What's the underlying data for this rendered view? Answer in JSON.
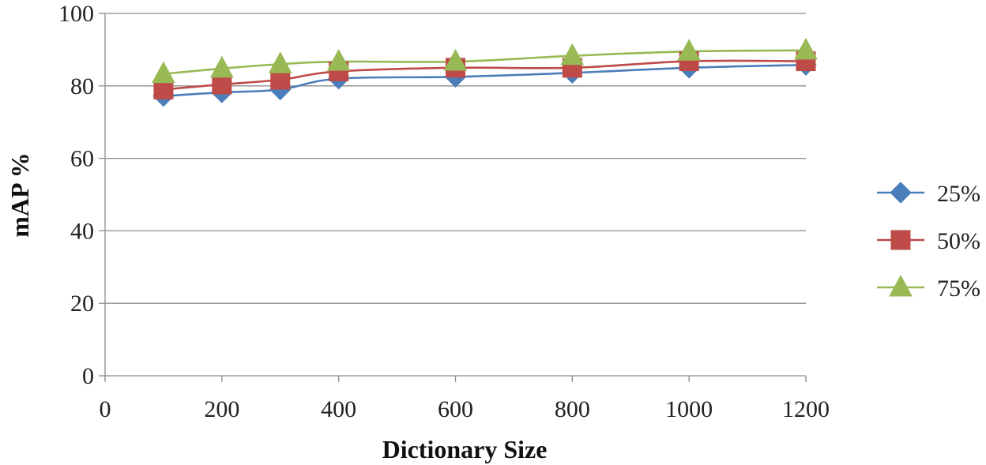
{
  "chart_data": {
    "type": "line",
    "title": "",
    "xlabel": "Dictionary Size",
    "ylabel": "mAP %",
    "xlim": [
      0,
      1200
    ],
    "ylim": [
      0,
      100
    ],
    "xticks": [
      0,
      200,
      400,
      600,
      800,
      1000,
      1200
    ],
    "yticks": [
      0,
      20,
      40,
      60,
      80,
      100
    ],
    "grid": "horizontal",
    "legend_position": "right",
    "x": [
      100,
      200,
      300,
      400,
      600,
      800,
      1000,
      1200
    ],
    "series": [
      {
        "name": "25%",
        "marker": "diamond",
        "color": "#4a7ebb",
        "values": [
          77.2,
          78.2,
          79.0,
          82.0,
          82.5,
          83.6,
          85.0,
          85.8
        ]
      },
      {
        "name": "50%",
        "marker": "square",
        "color": "#be4b48",
        "values": [
          79.0,
          80.4,
          81.7,
          84.0,
          85.0,
          85.0,
          86.8,
          86.8
        ]
      },
      {
        "name": "75%",
        "marker": "triangle",
        "color": "#98b954",
        "values": [
          83.3,
          84.8,
          86.0,
          86.7,
          86.7,
          88.3,
          89.5,
          89.8
        ]
      }
    ]
  }
}
